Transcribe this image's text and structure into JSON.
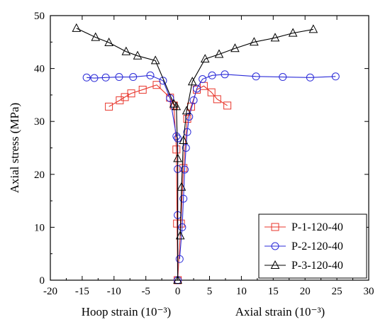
{
  "chart_data": {
    "type": "line",
    "ylabel": "Axial stress (MPa)",
    "xlabel_left": "Hoop strain (10⁻³)",
    "xlabel_right": "Axial strain (10⁻³)",
    "xlim": [
      -20,
      30
    ],
    "ylim": [
      0,
      50
    ],
    "xticks": [
      -20,
      -15,
      -10,
      -5,
      0,
      5,
      10,
      15,
      20,
      25,
      30
    ],
    "yticks": [
      0,
      10,
      20,
      30,
      40,
      50
    ],
    "grid": false,
    "legend_position": "bottom-right",
    "series": [
      {
        "name": "P-1-120-40",
        "color": "#e8352b",
        "marker": "square",
        "hoop": [
          [
            0,
            0
          ],
          [
            -0.1,
            10.7
          ],
          [
            -0.2,
            24.7
          ],
          [
            -0.6,
            33.0
          ],
          [
            -1.2,
            34.5
          ],
          [
            -3.3,
            36.9
          ],
          [
            -5.5,
            36.0
          ],
          [
            -7.3,
            35.3
          ],
          [
            -8.3,
            34.6
          ],
          [
            -9.1,
            34.0
          ],
          [
            -10.8,
            32.8
          ]
        ],
        "axial": [
          [
            0,
            0
          ],
          [
            0.5,
            10.7
          ],
          [
            0.9,
            21.2
          ],
          [
            1.5,
            30.5
          ],
          [
            2.1,
            32.8
          ],
          [
            3.0,
            36.0
          ],
          [
            4.1,
            36.7
          ],
          [
            5.3,
            35.5
          ],
          [
            6.2,
            34.2
          ],
          [
            7.8,
            33.0
          ]
        ]
      },
      {
        "name": "P-2-120-40",
        "color": "#2b2bd8",
        "marker": "circle",
        "hoop": [
          [
            0,
            0
          ],
          [
            0,
            12.3
          ],
          [
            0,
            21.0
          ],
          [
            0,
            26.8
          ],
          [
            -0.2,
            27.2
          ],
          [
            -1.2,
            34.4
          ],
          [
            -2.3,
            37.7
          ],
          [
            -4.3,
            38.7
          ],
          [
            -7.0,
            38.4
          ],
          [
            -9.2,
            38.4
          ],
          [
            -11.3,
            38.3
          ],
          [
            -13.1,
            38.2
          ],
          [
            -14.3,
            38.3
          ]
        ],
        "axial": [
          [
            0.3,
            4.0
          ],
          [
            0.7,
            10.0
          ],
          [
            0.9,
            15.4
          ],
          [
            1.1,
            20.9
          ],
          [
            1.3,
            25.0
          ],
          [
            1.5,
            28.0
          ],
          [
            1.8,
            30.9
          ],
          [
            2.5,
            34.0
          ],
          [
            3.0,
            36.2
          ],
          [
            3.9,
            38.0
          ],
          [
            5.4,
            38.7
          ],
          [
            7.4,
            38.9
          ],
          [
            12.3,
            38.5
          ],
          [
            16.5,
            38.4
          ],
          [
            20.8,
            38.3
          ],
          [
            24.8,
            38.5
          ]
        ]
      },
      {
        "name": "P-3-120-40",
        "color": "#000000",
        "marker": "triangle",
        "hoop": [
          [
            0,
            0
          ],
          [
            0,
            23.0
          ],
          [
            -0.2,
            32.8
          ],
          [
            -0.6,
            33.3
          ],
          [
            -3.5,
            41.5
          ],
          [
            -6.3,
            42.4
          ],
          [
            -8.1,
            43.2
          ],
          [
            -10.8,
            44.9
          ],
          [
            -12.9,
            45.9
          ],
          [
            -15.9,
            47.6
          ]
        ],
        "axial": [
          [
            0.4,
            8.4
          ],
          [
            0.6,
            17.6
          ],
          [
            0.9,
            26.4
          ],
          [
            1.4,
            32.0
          ],
          [
            2.3,
            37.5
          ],
          [
            4.3,
            41.8
          ],
          [
            6.5,
            42.7
          ],
          [
            9.0,
            43.8
          ],
          [
            12.0,
            45.0
          ],
          [
            15.3,
            45.8
          ],
          [
            18.1,
            46.7
          ],
          [
            21.3,
            47.4
          ]
        ]
      }
    ]
  }
}
